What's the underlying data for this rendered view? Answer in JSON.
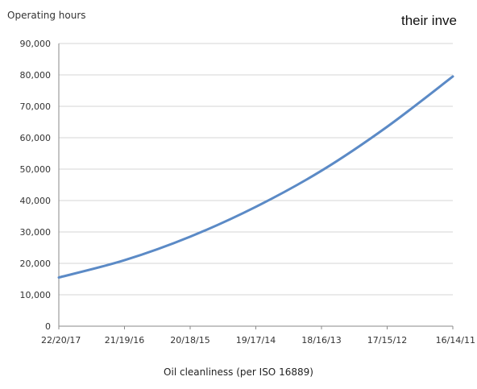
{
  "page": {
    "ylabel": "Operating hours",
    "xlabel": "Oil cleanliness (per ISO 16889)",
    "top_right_fragment": "their inve"
  },
  "colors": {
    "series": "#5b8ac6",
    "grid": "#d6d6d6",
    "axis": "#8a8a8a",
    "background": "#ffffff"
  },
  "chart_data": {
    "type": "line",
    "title": "",
    "xlabel": "Oil cleanliness (per ISO 16889)",
    "ylabel": "Operating hours",
    "categories": [
      "22/20/17",
      "21/19/16",
      "20/18/15",
      "19/17/14",
      "18/16/13",
      "17/15/12",
      "16/14/11"
    ],
    "series": [
      {
        "values": [
          15500,
          21000,
          28500,
          38000,
          49500,
          63500,
          79500
        ]
      }
    ],
    "ylim": [
      0,
      90000
    ],
    "yticks": [
      "0",
      "10,000",
      "20,000",
      "30,000",
      "40,000",
      "50,000",
      "60,000",
      "70,000",
      "80,000",
      "90,000"
    ],
    "grid": true,
    "legend": "none"
  }
}
